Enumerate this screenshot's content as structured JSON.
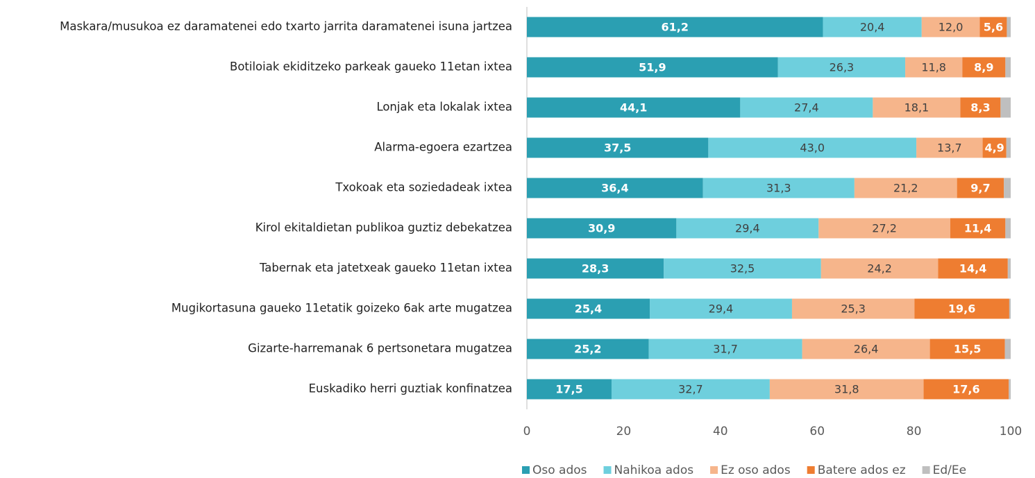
{
  "chart_data": {
    "type": "stacked_bar_horizontal",
    "categories": [
      "Maskara/musukoa ez daramatenei edo txarto jarrita daramatenei isuna jartzea",
      "Botiloiak ekiditzeko parkeak gaueko 11etan ixtea",
      "Lonjak eta lokalak ixtea",
      "Alarma-egoera ezartzea",
      "Txokoak eta soziedadeak ixtea",
      "Kirol ekitaldietan publikoa guztiz debekatzea",
      "Tabernak eta jatetxeak gaueko 11etan ixtea",
      "Mugikortasuna gaueko 11etatik goizeko 6ak arte mugatzea",
      "Gizarte-harremanak 6 pertsonetara mugatzea",
      "Euskadiko herri guztiak konfinatzea"
    ],
    "series": [
      {
        "name": "Oso ados",
        "color": "#2b9fb2",
        "values": [
          61.2,
          51.9,
          44.1,
          37.5,
          36.4,
          30.9,
          28.3,
          25.4,
          25.2,
          17.5
        ],
        "value_labels": [
          "61,2",
          "51,9",
          "44,1",
          "37,5",
          "36,4",
          "30,9",
          "28,3",
          "25,4",
          "25,2",
          "17,5"
        ]
      },
      {
        "name": "Nahikoa ados",
        "color": "#6ecfdd",
        "values": [
          20.4,
          26.3,
          27.4,
          43.0,
          31.3,
          29.4,
          32.5,
          29.4,
          31.7,
          32.7
        ],
        "value_labels": [
          "20,4",
          "26,3",
          "27,4",
          "43,0",
          "31,3",
          "29,4",
          "32,5",
          "29,4",
          "31,7",
          "32,7"
        ]
      },
      {
        "name": "Ez oso ados",
        "color": "#f6b58b",
        "values": [
          12.0,
          11.8,
          18.1,
          13.7,
          21.2,
          27.2,
          24.2,
          25.3,
          26.4,
          31.8
        ],
        "value_labels": [
          "12,0",
          "11,8",
          "18,1",
          "13,7",
          "21,2",
          "27,2",
          "24,2",
          "25,3",
          "26,4",
          "31,8"
        ]
      },
      {
        "name": "Batere ados ez",
        "color": "#ee7d31",
        "values": [
          5.6,
          8.9,
          8.3,
          4.9,
          9.7,
          11.4,
          14.4,
          19.6,
          15.5,
          17.6
        ],
        "value_labels": [
          "5,6",
          "8,9",
          "8,3",
          "4,9",
          "9,7",
          "11,4",
          "14,4",
          "19,6",
          "15,5",
          "17,6"
        ]
      },
      {
        "name": "Ed/Ee",
        "color": "#bfbfbf",
        "values": [
          0.8,
          1.1,
          2.1,
          0.9,
          1.4,
          1.1,
          0.6,
          0.3,
          1.2,
          0.4
        ]
      }
    ],
    "xlim": [
      0,
      100
    ],
    "xticks": [
      0,
      20,
      40,
      60,
      80,
      100
    ],
    "legend": "bottom"
  }
}
